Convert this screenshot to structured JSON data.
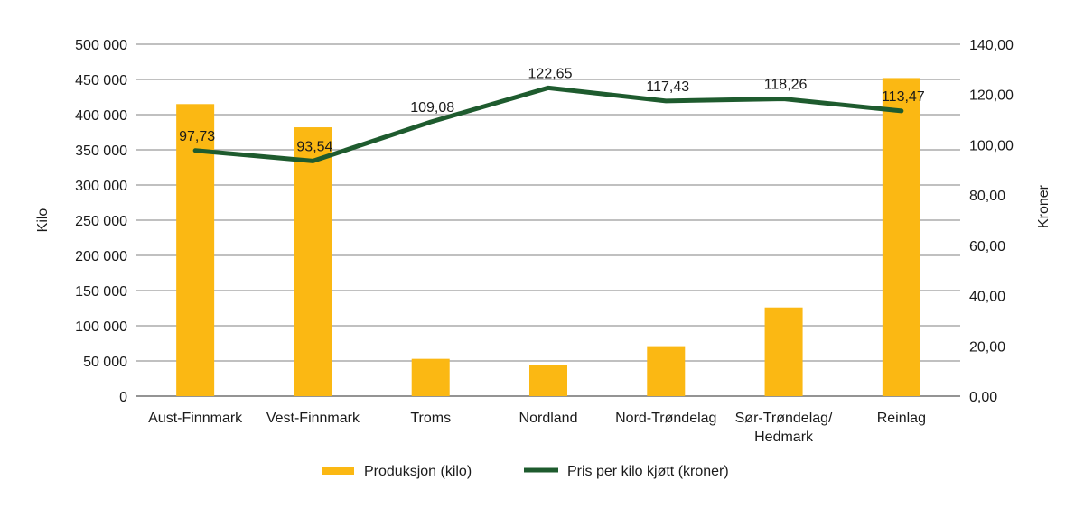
{
  "chart_data": {
    "type": "bar+line",
    "categories": [
      "Aust-Finnmark",
      "Vest-Finnmark",
      "Troms",
      "Nordland",
      "Nord-Trøndelag",
      [
        "Sør-Trøndelag/",
        "Hedmark"
      ],
      "Reinlag"
    ],
    "series": [
      {
        "name": "Produksjon (kilo)",
        "type": "bar",
        "axis": "left",
        "color": "#FBB813",
        "values": [
          415000,
          382000,
          53000,
          44000,
          71000,
          126000,
          452000
        ]
      },
      {
        "name": "Pris per kilo kjøtt (kroner)",
        "type": "line",
        "axis": "right",
        "color": "#1E5B2E",
        "values": [
          97.73,
          93.54,
          109.08,
          122.65,
          117.43,
          118.26,
          113.47
        ],
        "labels": [
          "97,73",
          "93,54",
          "109,08",
          "122,65",
          "117,43",
          "118,26",
          "113,47"
        ]
      }
    ],
    "ylabel": "Kilo",
    "y2label": "Kroner",
    "ylim": [
      0,
      500000
    ],
    "y2lim": [
      0,
      140
    ],
    "yticks": [
      "0",
      "50 000",
      "100 000",
      "150 000",
      "200 000",
      "250 000",
      "300 000",
      "350 000",
      "400 000",
      "450 000",
      "500 000"
    ],
    "y2ticks": [
      "0,00",
      "20,00",
      "40,00",
      "60,00",
      "80,00",
      "100,00",
      "120,00",
      "140,00"
    ],
    "grid": true,
    "legend": "bottom"
  }
}
